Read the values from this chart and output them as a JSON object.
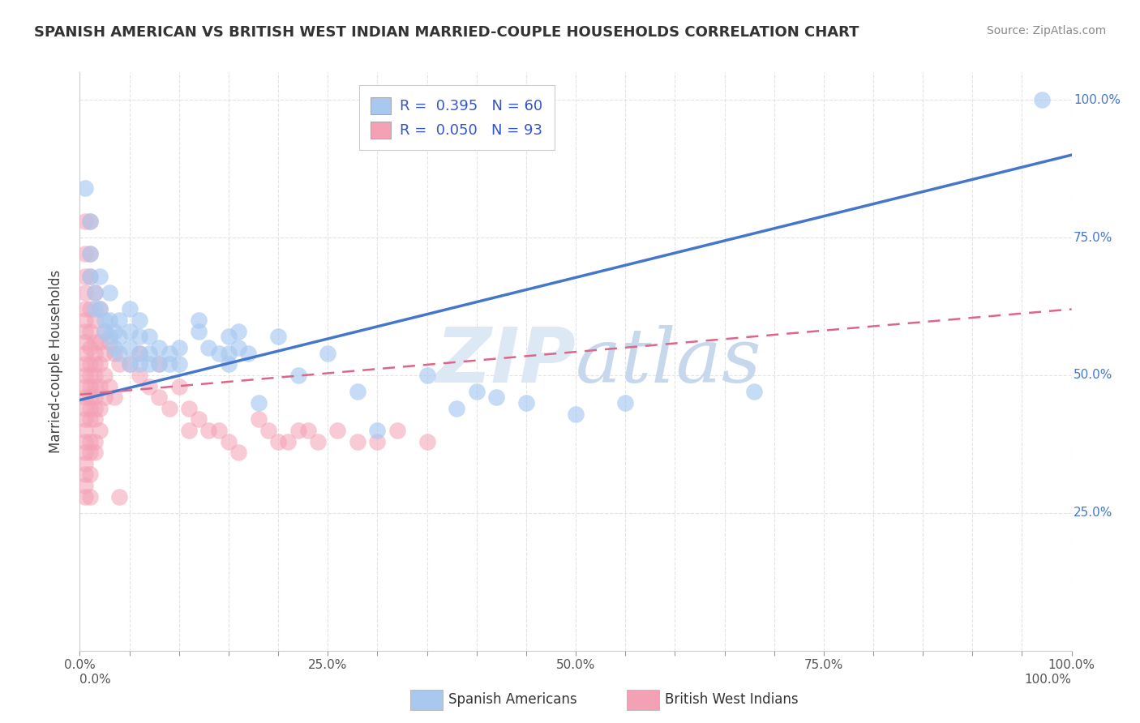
{
  "title": "SPANISH AMERICAN VS BRITISH WEST INDIAN MARRIED-COUPLE HOUSEHOLDS CORRELATION CHART",
  "source": "Source: ZipAtlas.com",
  "ylabel": "Married-couple Households",
  "xlim": [
    0,
    1.0
  ],
  "ylim": [
    0,
    1.05
  ],
  "xtick_labels": [
    "0.0%",
    "",
    "",
    "",
    "",
    "25.0%",
    "",
    "",
    "",
    "",
    "50.0%",
    "",
    "",
    "",
    "",
    "75.0%",
    "",
    "",
    "",
    "",
    "100.0%"
  ],
  "xtick_vals": [
    0.0,
    0.05,
    0.1,
    0.15,
    0.2,
    0.25,
    0.3,
    0.35,
    0.4,
    0.45,
    0.5,
    0.55,
    0.6,
    0.65,
    0.7,
    0.75,
    0.8,
    0.85,
    0.9,
    0.95,
    1.0
  ],
  "ytick_labels_right": [
    "25.0%",
    "50.0%",
    "75.0%",
    "100.0%"
  ],
  "ytick_vals": [
    0.25,
    0.5,
    0.75,
    1.0
  ],
  "legend1_label": "R =  0.395   N = 60",
  "legend2_label": "R =  0.050   N = 93",
  "color_blue": "#a8c8f0",
  "color_pink": "#f4a0b5",
  "line_blue": "#4477cc",
  "line_pink": "#dd6688",
  "tick_color": "#4477cc",
  "watermark_color": "#dde8f5",
  "background": "#ffffff",
  "grid_color": "#dddddd",
  "title_color": "#333333",
  "source_color": "#888888",
  "legend_text_color": "#333333",
  "legend_value_color": "#3355cc",
  "blue_scatter": [
    [
      0.005,
      0.84
    ],
    [
      0.01,
      0.78
    ],
    [
      0.01,
      0.72
    ],
    [
      0.01,
      0.68
    ],
    [
      0.015,
      0.65
    ],
    [
      0.015,
      0.62
    ],
    [
      0.02,
      0.68
    ],
    [
      0.02,
      0.62
    ],
    [
      0.025,
      0.6
    ],
    [
      0.025,
      0.58
    ],
    [
      0.03,
      0.65
    ],
    [
      0.03,
      0.6
    ],
    [
      0.03,
      0.57
    ],
    [
      0.035,
      0.58
    ],
    [
      0.035,
      0.55
    ],
    [
      0.04,
      0.6
    ],
    [
      0.04,
      0.57
    ],
    [
      0.04,
      0.54
    ],
    [
      0.05,
      0.62
    ],
    [
      0.05,
      0.58
    ],
    [
      0.05,
      0.55
    ],
    [
      0.05,
      0.52
    ],
    [
      0.06,
      0.6
    ],
    [
      0.06,
      0.57
    ],
    [
      0.06,
      0.54
    ],
    [
      0.06,
      0.52
    ],
    [
      0.07,
      0.57
    ],
    [
      0.07,
      0.54
    ],
    [
      0.07,
      0.52
    ],
    [
      0.08,
      0.55
    ],
    [
      0.08,
      0.52
    ],
    [
      0.09,
      0.54
    ],
    [
      0.09,
      0.52
    ],
    [
      0.1,
      0.55
    ],
    [
      0.1,
      0.52
    ],
    [
      0.12,
      0.6
    ],
    [
      0.12,
      0.58
    ],
    [
      0.13,
      0.55
    ],
    [
      0.14,
      0.54
    ],
    [
      0.15,
      0.57
    ],
    [
      0.15,
      0.54
    ],
    [
      0.15,
      0.52
    ],
    [
      0.16,
      0.58
    ],
    [
      0.16,
      0.55
    ],
    [
      0.17,
      0.54
    ],
    [
      0.18,
      0.45
    ],
    [
      0.2,
      0.57
    ],
    [
      0.22,
      0.5
    ],
    [
      0.25,
      0.54
    ],
    [
      0.28,
      0.47
    ],
    [
      0.3,
      0.4
    ],
    [
      0.35,
      0.5
    ],
    [
      0.38,
      0.44
    ],
    [
      0.4,
      0.47
    ],
    [
      0.42,
      0.46
    ],
    [
      0.45,
      0.45
    ],
    [
      0.5,
      0.43
    ],
    [
      0.55,
      0.45
    ],
    [
      0.68,
      0.47
    ],
    [
      0.97,
      1.0
    ]
  ],
  "pink_scatter": [
    [
      0.005,
      0.78
    ],
    [
      0.005,
      0.72
    ],
    [
      0.005,
      0.68
    ],
    [
      0.005,
      0.65
    ],
    [
      0.005,
      0.62
    ],
    [
      0.005,
      0.6
    ],
    [
      0.005,
      0.58
    ],
    [
      0.005,
      0.56
    ],
    [
      0.005,
      0.54
    ],
    [
      0.005,
      0.52
    ],
    [
      0.005,
      0.5
    ],
    [
      0.005,
      0.48
    ],
    [
      0.005,
      0.46
    ],
    [
      0.005,
      0.44
    ],
    [
      0.005,
      0.42
    ],
    [
      0.005,
      0.4
    ],
    [
      0.005,
      0.38
    ],
    [
      0.005,
      0.36
    ],
    [
      0.005,
      0.34
    ],
    [
      0.005,
      0.32
    ],
    [
      0.005,
      0.3
    ],
    [
      0.005,
      0.28
    ],
    [
      0.01,
      0.78
    ],
    [
      0.01,
      0.72
    ],
    [
      0.01,
      0.68
    ],
    [
      0.01,
      0.62
    ],
    [
      0.01,
      0.58
    ],
    [
      0.01,
      0.55
    ],
    [
      0.01,
      0.52
    ],
    [
      0.01,
      0.5
    ],
    [
      0.01,
      0.48
    ],
    [
      0.01,
      0.46
    ],
    [
      0.01,
      0.44
    ],
    [
      0.01,
      0.42
    ],
    [
      0.01,
      0.38
    ],
    [
      0.01,
      0.36
    ],
    [
      0.01,
      0.32
    ],
    [
      0.01,
      0.28
    ],
    [
      0.015,
      0.65
    ],
    [
      0.015,
      0.6
    ],
    [
      0.015,
      0.56
    ],
    [
      0.015,
      0.54
    ],
    [
      0.015,
      0.52
    ],
    [
      0.015,
      0.5
    ],
    [
      0.015,
      0.48
    ],
    [
      0.015,
      0.46
    ],
    [
      0.015,
      0.44
    ],
    [
      0.015,
      0.42
    ],
    [
      0.015,
      0.38
    ],
    [
      0.015,
      0.36
    ],
    [
      0.02,
      0.62
    ],
    [
      0.02,
      0.56
    ],
    [
      0.02,
      0.52
    ],
    [
      0.02,
      0.48
    ],
    [
      0.02,
      0.44
    ],
    [
      0.02,
      0.4
    ],
    [
      0.025,
      0.58
    ],
    [
      0.025,
      0.54
    ],
    [
      0.025,
      0.5
    ],
    [
      0.025,
      0.46
    ],
    [
      0.03,
      0.56
    ],
    [
      0.03,
      0.48
    ],
    [
      0.035,
      0.54
    ],
    [
      0.035,
      0.46
    ],
    [
      0.04,
      0.52
    ],
    [
      0.04,
      0.28
    ],
    [
      0.05,
      0.52
    ],
    [
      0.06,
      0.54
    ],
    [
      0.06,
      0.5
    ],
    [
      0.07,
      0.48
    ],
    [
      0.08,
      0.52
    ],
    [
      0.08,
      0.46
    ],
    [
      0.09,
      0.44
    ],
    [
      0.1,
      0.48
    ],
    [
      0.11,
      0.44
    ],
    [
      0.11,
      0.4
    ],
    [
      0.12,
      0.42
    ],
    [
      0.13,
      0.4
    ],
    [
      0.14,
      0.4
    ],
    [
      0.15,
      0.38
    ],
    [
      0.16,
      0.36
    ],
    [
      0.18,
      0.42
    ],
    [
      0.19,
      0.4
    ],
    [
      0.2,
      0.38
    ],
    [
      0.21,
      0.38
    ],
    [
      0.22,
      0.4
    ],
    [
      0.23,
      0.4
    ],
    [
      0.24,
      0.38
    ],
    [
      0.26,
      0.4
    ],
    [
      0.28,
      0.38
    ],
    [
      0.3,
      0.38
    ],
    [
      0.32,
      0.4
    ],
    [
      0.35,
      0.38
    ]
  ],
  "blue_line_x": [
    0.0,
    1.0
  ],
  "blue_line_y": [
    0.455,
    0.9
  ],
  "pink_line_x": [
    0.0,
    1.0
  ],
  "pink_line_y": [
    0.465,
    0.62
  ]
}
